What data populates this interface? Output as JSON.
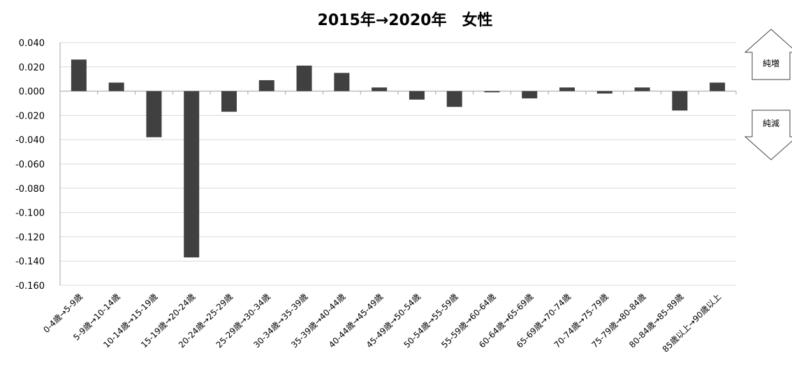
{
  "chart_data": {
    "type": "bar",
    "title": "2015年→2020年　女性",
    "xlabel": "",
    "ylabel": "",
    "ylim": [
      -0.16,
      0.04
    ],
    "yticks": [
      "0.040",
      "0.020",
      "0.000",
      "-0.020",
      "-0.040",
      "-0.060",
      "-0.080",
      "-0.100",
      "-0.120",
      "-0.140",
      "-0.160"
    ],
    "grid": true,
    "legend": "none",
    "categories": [
      "0-4歳→5-9歳",
      "5-9歳→10-14歳",
      "10-14歳→15-19歳",
      "15-19歳→20-24歳",
      "20-24歳→25-29歳",
      "25-29歳→30-34歳",
      "30-34歳→35-39歳",
      "35-39歳→40-44歳",
      "40-44歳→45-49歳",
      "45-49歳→50-54歳",
      "50-54歳→55-59歳",
      "55-59歳→60-64歳",
      "60-64歳→65-69歳",
      "65-69歳→70-74歳",
      "70-74歳→75-79歳",
      "75-79歳→80-84歳",
      "80-84歳→85-89歳",
      "85歳以上→90歳以上"
    ],
    "values": [
      0.026,
      0.007,
      -0.038,
      -0.137,
      -0.017,
      0.009,
      0.021,
      0.015,
      0.003,
      -0.007,
      -0.013,
      -0.001,
      -0.006,
      0.003,
      -0.002,
      0.003,
      -0.016,
      0.007
    ],
    "bar_color": "#404040",
    "annotations": {
      "increase_label": "純増",
      "decrease_label": "純減"
    }
  }
}
